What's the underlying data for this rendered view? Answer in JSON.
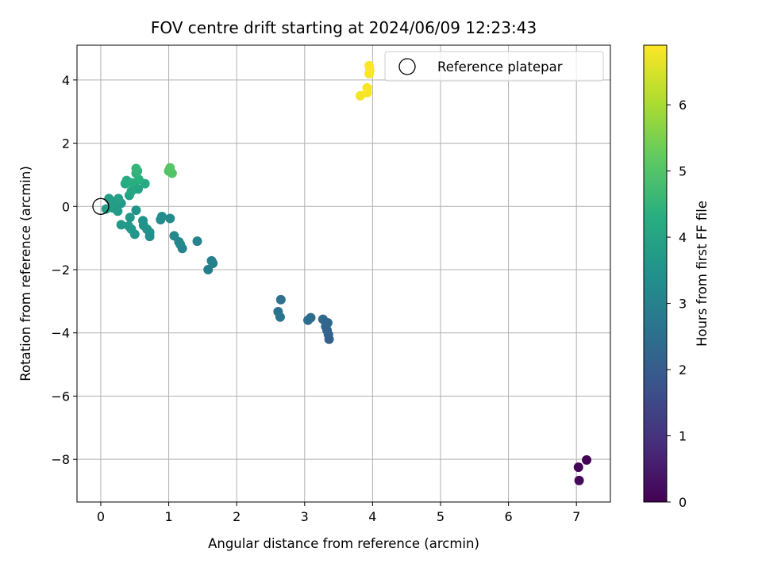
{
  "chart_data": {
    "type": "scatter",
    "title": "FOV centre drift starting at 2024/06/09 12:23:43",
    "xlabel": "Angular distance from reference (arcmin)",
    "ylabel": "Rotation from reference (arcmin)",
    "xlim": [
      -0.35,
      7.5
    ],
    "ylim": [
      -9.35,
      5.1
    ],
    "xticks": [
      0,
      1,
      2,
      3,
      4,
      5,
      6,
      7
    ],
    "yticks": [
      -8,
      -6,
      -4,
      -2,
      0,
      2,
      4
    ],
    "xtick_labels": [
      "0",
      "1",
      "2",
      "3",
      "4",
      "5",
      "6",
      "7"
    ],
    "ytick_labels": [
      "−8",
      "−6",
      "−4",
      "−2",
      "0",
      "2",
      "4"
    ],
    "grid": true,
    "legend": {
      "placement": "top-right",
      "entries": [
        {
          "label": "Reference platepar",
          "marker": "open-circle"
        }
      ]
    },
    "reference_point": {
      "x": 0,
      "y": 0,
      "label": "Reference platepar"
    },
    "colorbar": {
      "label": "Hours from first FF file",
      "range": [
        0,
        6.9
      ],
      "ticks": [
        0,
        1,
        2,
        3,
        4,
        5,
        6
      ],
      "tick_labels": [
        "0",
        "1",
        "2",
        "3",
        "4",
        "5",
        "6"
      ],
      "colormap": "viridis"
    },
    "points": [
      {
        "x": 7.15,
        "y": -8.02,
        "c": 0.05
      },
      {
        "x": 7.03,
        "y": -8.25,
        "c": 0.1
      },
      {
        "x": 7.04,
        "y": -8.67,
        "c": 0.15
      },
      {
        "x": 3.36,
        "y": -4.2,
        "c": 2.1
      },
      {
        "x": 3.35,
        "y": -4.05,
        "c": 2.15
      },
      {
        "x": 3.33,
        "y": -3.92,
        "c": 2.2
      },
      {
        "x": 3.31,
        "y": -3.8,
        "c": 2.25
      },
      {
        "x": 3.34,
        "y": -3.68,
        "c": 2.3
      },
      {
        "x": 3.27,
        "y": -3.57,
        "c": 2.35
      },
      {
        "x": 3.09,
        "y": -3.52,
        "c": 2.4
      },
      {
        "x": 3.05,
        "y": -3.6,
        "c": 2.45
      },
      {
        "x": 2.65,
        "y": -2.95,
        "c": 2.55
      },
      {
        "x": 2.61,
        "y": -3.33,
        "c": 2.6
      },
      {
        "x": 2.64,
        "y": -3.5,
        "c": 2.65
      },
      {
        "x": 1.58,
        "y": -2.0,
        "c": 2.9
      },
      {
        "x": 1.63,
        "y": -1.72,
        "c": 2.95
      },
      {
        "x": 1.65,
        "y": -1.8,
        "c": 3.0
      },
      {
        "x": 1.42,
        "y": -1.1,
        "c": 3.05
      },
      {
        "x": 1.2,
        "y": -1.33,
        "c": 3.1
      },
      {
        "x": 1.17,
        "y": -1.2,
        "c": 3.12
      },
      {
        "x": 1.15,
        "y": -1.12,
        "c": 3.15
      },
      {
        "x": 1.08,
        "y": -0.93,
        "c": 3.2
      },
      {
        "x": 1.02,
        "y": -0.38,
        "c": 3.25
      },
      {
        "x": 0.9,
        "y": -0.32,
        "c": 3.3
      },
      {
        "x": 0.88,
        "y": -0.42,
        "c": 3.32
      },
      {
        "x": 0.72,
        "y": -0.95,
        "c": 3.4
      },
      {
        "x": 0.72,
        "y": -0.82,
        "c": 3.42
      },
      {
        "x": 0.68,
        "y": -0.72,
        "c": 3.45
      },
      {
        "x": 0.62,
        "y": -0.45,
        "c": 3.48
      },
      {
        "x": 0.63,
        "y": -0.6,
        "c": 3.5
      },
      {
        "x": 0.52,
        "y": -0.12,
        "c": 3.55
      },
      {
        "x": 0.5,
        "y": -0.88,
        "c": 3.6
      },
      {
        "x": 0.45,
        "y": -0.72,
        "c": 3.62
      },
      {
        "x": 0.43,
        "y": -0.35,
        "c": 3.65
      },
      {
        "x": 0.41,
        "y": -0.62,
        "c": 3.68
      },
      {
        "x": 0.3,
        "y": -0.58,
        "c": 3.7
      },
      {
        "x": 0.3,
        "y": 0.1,
        "c": 3.72
      },
      {
        "x": 0.25,
        "y": -0.15,
        "c": 3.75
      },
      {
        "x": 0.22,
        "y": 0.08,
        "c": 3.78
      },
      {
        "x": 0.18,
        "y": -0.05,
        "c": 3.8
      },
      {
        "x": 0.15,
        "y": 0.18,
        "c": 3.82
      },
      {
        "x": 0.12,
        "y": 0.25,
        "c": 3.85
      },
      {
        "x": 0.08,
        "y": -0.08,
        "c": 3.88
      },
      {
        "x": 0.26,
        "y": 0.25,
        "c": 3.9
      },
      {
        "x": 0.42,
        "y": 0.35,
        "c": 3.95
      },
      {
        "x": 0.55,
        "y": 0.55,
        "c": 4.0
      },
      {
        "x": 0.5,
        "y": 0.62,
        "c": 4.05
      },
      {
        "x": 0.45,
        "y": 0.48,
        "c": 4.1
      },
      {
        "x": 0.65,
        "y": 0.72,
        "c": 4.15
      },
      {
        "x": 0.36,
        "y": 0.72,
        "c": 4.2
      },
      {
        "x": 0.38,
        "y": 0.82,
        "c": 4.25
      },
      {
        "x": 0.45,
        "y": 0.75,
        "c": 4.3
      },
      {
        "x": 0.56,
        "y": 0.85,
        "c": 4.35
      },
      {
        "x": 0.52,
        "y": 1.05,
        "c": 4.4
      },
      {
        "x": 0.54,
        "y": 1.12,
        "c": 4.45
      },
      {
        "x": 0.52,
        "y": 1.2,
        "c": 4.5
      },
      {
        "x": 1.0,
        "y": 1.12,
        "c": 4.95
      },
      {
        "x": 1.05,
        "y": 1.05,
        "c": 5.0
      },
      {
        "x": 1.02,
        "y": 1.22,
        "c": 5.05
      },
      {
        "x": 3.82,
        "y": 3.5,
        "c": 6.8
      },
      {
        "x": 3.92,
        "y": 3.6,
        "c": 6.82
      },
      {
        "x": 3.92,
        "y": 3.75,
        "c": 6.84
      },
      {
        "x": 3.95,
        "y": 4.2,
        "c": 6.86
      },
      {
        "x": 3.96,
        "y": 4.3,
        "c": 6.88
      },
      {
        "x": 3.95,
        "y": 4.45,
        "c": 6.9
      }
    ]
  }
}
